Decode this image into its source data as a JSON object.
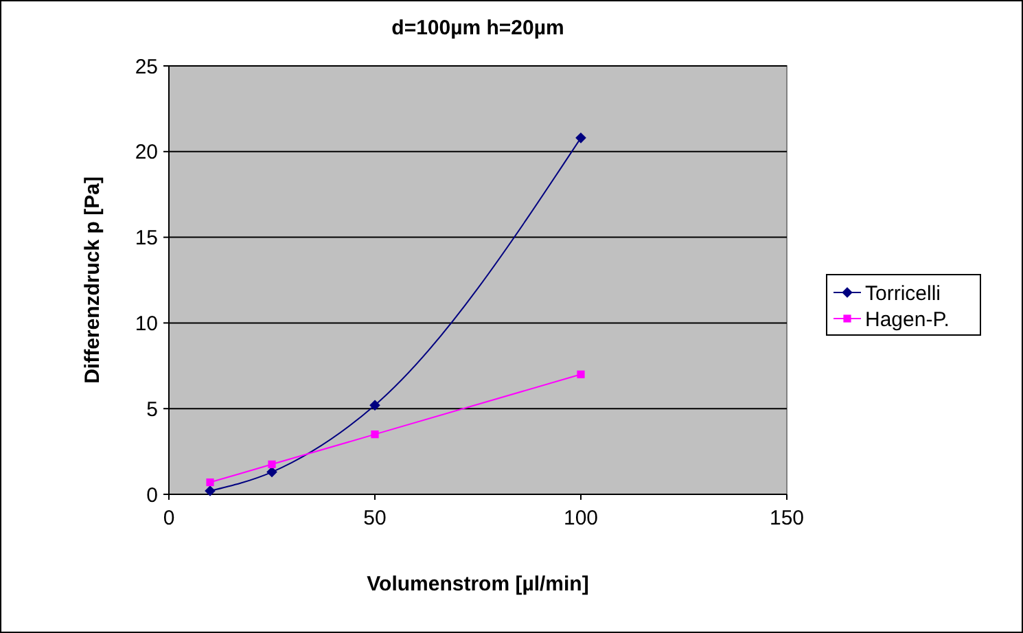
{
  "chart_data": {
    "type": "line",
    "title": "d=100µm  h=20µm",
    "xlabel": "Volumenstrom [µl/min]",
    "ylabel": "Differenzdruck p [Pa]",
    "x": [
      10,
      25,
      50,
      100
    ],
    "series": [
      {
        "name": "Torricelli",
        "color": "#000080",
        "values": [
          0.2,
          1.3,
          5.2,
          20.8
        ],
        "marker": "diamond"
      },
      {
        "name": "Hagen-P.",
        "color": "#ff00ff",
        "values": [
          0.7,
          1.75,
          3.5,
          7.0
        ],
        "marker": "square"
      }
    ],
    "xlim": [
      0,
      150
    ],
    "xticks": [
      0,
      50,
      100,
      150
    ],
    "ylim": [
      0,
      25
    ],
    "yticks": [
      0,
      5,
      10,
      15,
      20,
      25
    ],
    "grid": "y",
    "legend": "right",
    "line_style": "solid"
  }
}
